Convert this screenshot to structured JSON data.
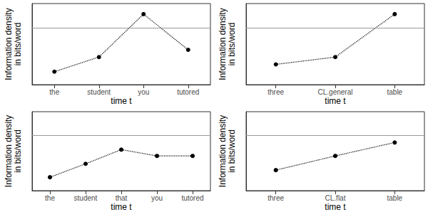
{
  "chart_data": [
    {
      "type": "line",
      "categories": [
        "the",
        "student",
        "you",
        "tutored"
      ],
      "values": [
        1.6,
        3.4,
        8.7,
        4.3
      ],
      "x_label": "time t",
      "y_label": "Information density\nin bits/word",
      "ylim": [
        0,
        10
      ],
      "yticks": [],
      "hline": 7,
      "tick_labels": "x",
      "color": "#000000",
      "marker": "circle",
      "line_style": "dotted"
    },
    {
      "type": "line",
      "categories": [
        "three",
        "CL.general",
        "table"
      ],
      "values": [
        2.5,
        3.4,
        8.7
      ],
      "x_label": "time t",
      "y_label": "Information density\nin bits/word",
      "ylim": [
        0,
        10
      ],
      "yticks": [],
      "hline": 7,
      "tick_labels": "x",
      "color": "#000000",
      "marker": "circle",
      "line_style": "dotted"
    },
    {
      "type": "line",
      "categories": [
        "the",
        "student",
        "that",
        "you",
        "tutored"
      ],
      "values": [
        1.7,
        3.4,
        5.2,
        4.4,
        4.4
      ],
      "x_label": "time t",
      "y_label": "Information density\nin bits/word",
      "ylim": [
        0,
        10
      ],
      "yticks": [],
      "hline": 7,
      "tick_labels": "x",
      "color": "#000000",
      "marker": "circle",
      "line_style": "dotted"
    },
    {
      "type": "line",
      "categories": [
        "three",
        "CL.flat",
        "table"
      ],
      "values": [
        2.6,
        4.4,
        6.1
      ],
      "x_label": "time t",
      "y_label": "Information density\nin bits/word",
      "ylim": [
        0,
        10
      ],
      "yticks": [],
      "hline": 7,
      "tick_labels": "x",
      "color": "#000000",
      "marker": "circle",
      "line_style": "dotted"
    }
  ]
}
